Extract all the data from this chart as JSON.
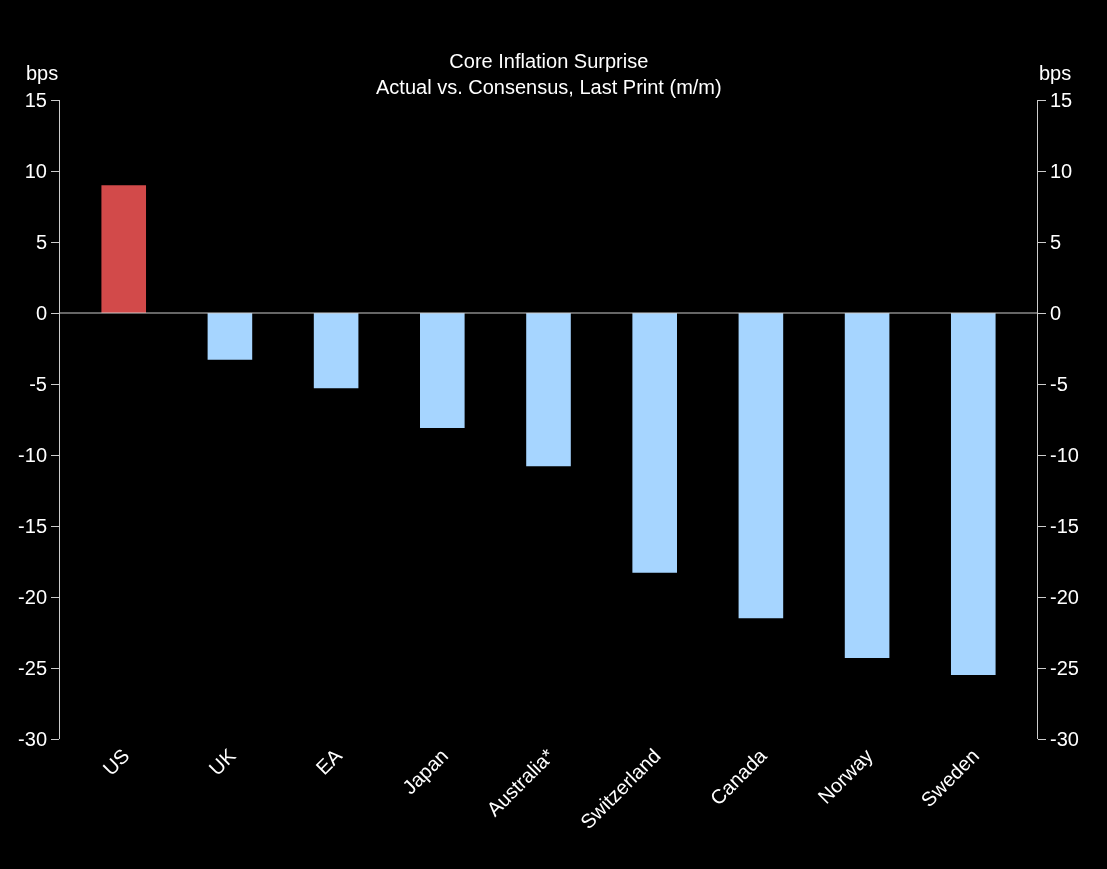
{
  "chart_data": {
    "type": "bar",
    "title": "Core Inflation Surprise",
    "subtitle": "Actual vs. Consensus, Last Print (m/m)",
    "ylabel": "bps",
    "y2label": "bps",
    "categories": [
      "US",
      "UK",
      "EA",
      "Japan",
      "Australia*",
      "Switzerland",
      "Canada",
      "Norway",
      "Sweden"
    ],
    "values": [
      9,
      -3.3,
      -5.3,
      -8.1,
      -10.8,
      -18.3,
      -21.5,
      -24.3,
      -25.5
    ],
    "colors": [
      "#d24a4a",
      "#a6d5ff",
      "#a6d5ff",
      "#a6d5ff",
      "#a6d5ff",
      "#a6d5ff",
      "#a6d5ff",
      "#a6d5ff",
      "#a6d5ff"
    ],
    "ylim": [
      -30,
      15
    ],
    "yticks": [
      -30,
      -25,
      -20,
      -15,
      -10,
      -5,
      0,
      5,
      10,
      15
    ],
    "y2lim": [
      -30,
      15
    ],
    "y2ticks": [
      -30,
      -25,
      -20,
      -15,
      -10,
      -5,
      0,
      5,
      10,
      15
    ],
    "legend": false
  }
}
